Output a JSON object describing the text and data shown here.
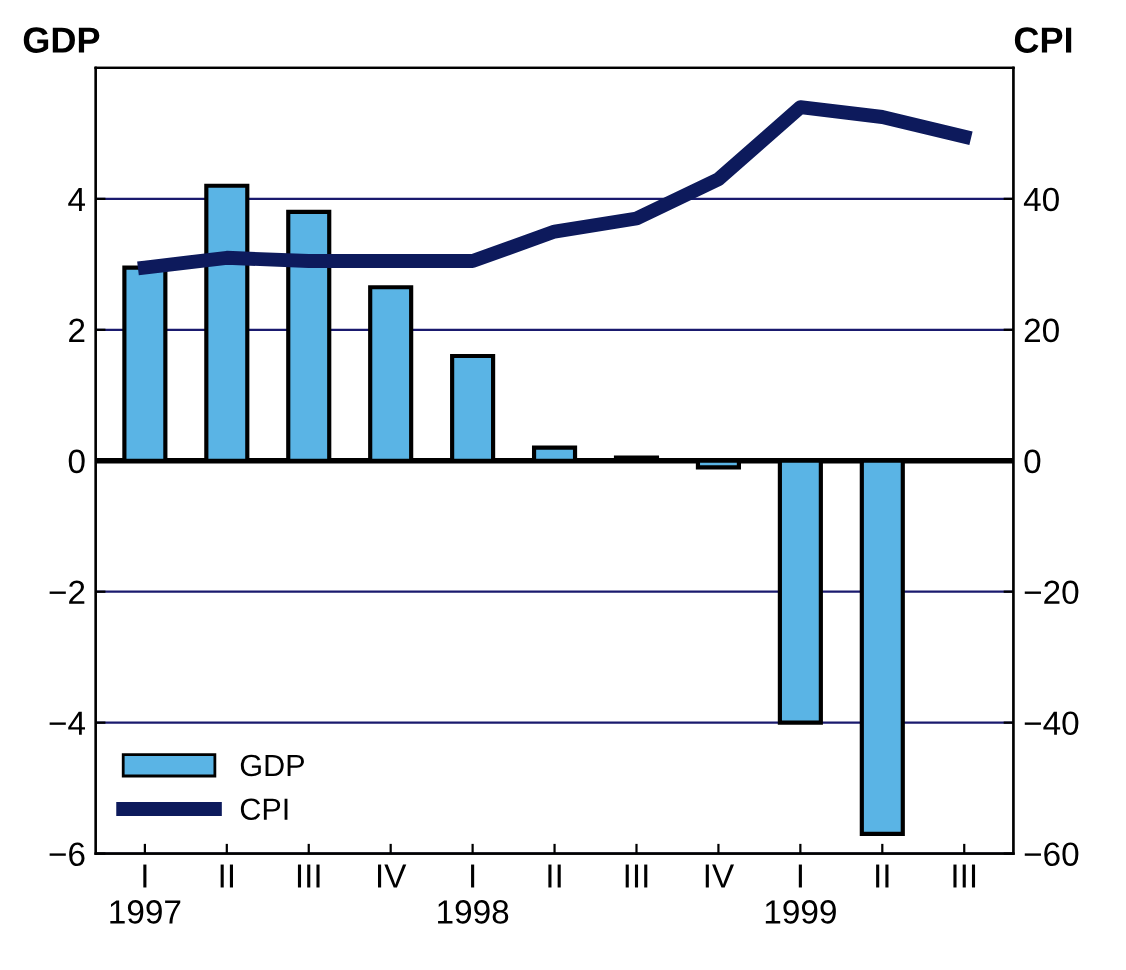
{
  "chart_data": {
    "type": "bar",
    "categories": [
      "I\n1997",
      "II",
      "III",
      "IV",
      "I\n1998",
      "II",
      "III",
      "IV",
      "I\n1999",
      "II",
      "III"
    ],
    "ylabel": "GDP",
    "y2label": "CPI",
    "ylim": [
      -6,
      6
    ],
    "yticks": [
      -6,
      -4,
      -2,
      0,
      2,
      4
    ],
    "y2lim": [
      -60,
      60
    ],
    "y2ticks": [
      -60,
      -40,
      -20,
      0,
      20,
      40
    ],
    "grid": "y",
    "legend": "bottom left",
    "series": [
      {
        "name": "GDP",
        "color": "#5ab4e5",
        "values": [
          2.95,
          4.2,
          3.8,
          2.65,
          1.6,
          0.2,
          0.05,
          -0.1,
          -4.0,
          -5.7,
          null
        ]
      },
      {
        "name": "CPI",
        "type": "line",
        "axis": "y2",
        "color": "#0d1a5c",
        "values": [
          29.5,
          31,
          30.5,
          30.5,
          30.5,
          35,
          37,
          43,
          54,
          52.5,
          49.5
        ]
      }
    ]
  }
}
